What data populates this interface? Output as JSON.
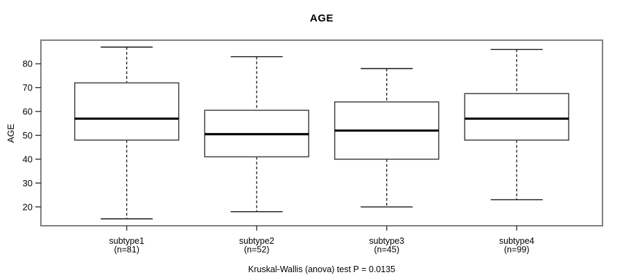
{
  "title": "AGE",
  "y_axis": {
    "label": "AGE"
  },
  "footer": "Kruskal-Wallis (anova) test P = 0.0135",
  "colors": {
    "frame": "#7e7e7e",
    "box_stroke": "#4a4a4a",
    "median": "#000000",
    "whisker": "#151515",
    "tick": "#222222",
    "background": "#ffffff",
    "text": "#000000"
  },
  "chart_data": {
    "type": "boxplot",
    "title": "AGE",
    "xlabel": "",
    "ylabel": "AGE",
    "ylim": [
      12.1,
      89.9
    ],
    "yticks": [
      20,
      30,
      40,
      50,
      60,
      70,
      80
    ],
    "grid": false,
    "annotation": "Kruskal-Wallis (anova) test P = 0.0135",
    "groups": [
      {
        "label": "subtype1",
        "n_label": "(n=81)",
        "n": 81,
        "whisker_low": 15,
        "q1": 48,
        "median": 57,
        "q3": 72,
        "whisker_high": 87
      },
      {
        "label": "subtype2",
        "n_label": "(n=52)",
        "n": 52,
        "whisker_low": 18,
        "q1": 41,
        "median": 50.5,
        "q3": 60.5,
        "whisker_high": 83
      },
      {
        "label": "subtype3",
        "n_label": "(n=45)",
        "n": 45,
        "whisker_low": 20,
        "q1": 40,
        "median": 52,
        "q3": 64,
        "whisker_high": 78
      },
      {
        "label": "subtype4",
        "n_label": "(n=99)",
        "n": 99,
        "whisker_low": 23,
        "q1": 48,
        "median": 57,
        "q3": 67.5,
        "whisker_high": 86
      }
    ]
  }
}
